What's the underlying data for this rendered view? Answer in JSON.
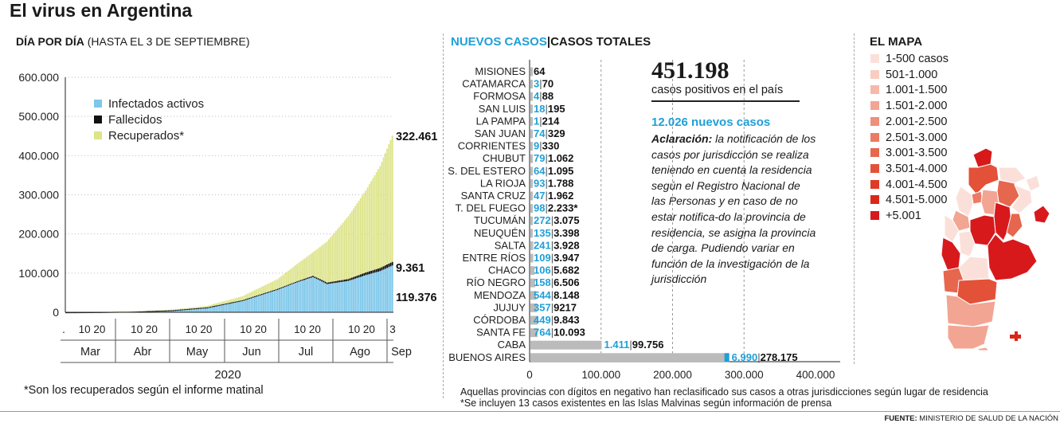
{
  "title": "El virus en Argentina",
  "left": {
    "subtitle_bold": "DÍA POR DÍA",
    "subtitle_rest": " (HASTA EL 3 DE SEPTIEMBRE)",
    "footnote": "*Son los recuperados según el informe matinal"
  },
  "middle": {
    "header_new": "NUEVOS CASOS",
    "header_sep": "|",
    "header_total": "CASOS TOTALES",
    "big_total": "451.198",
    "big_sub": "casos positivos en el país",
    "new_cases": "12.026 nuevos casos",
    "aclaracion_bold": "Aclaración:",
    "aclaracion_text": " la notificación de los casos por jurisdicción se realiza teniendo en cuenta la residencia según el Registro Nacional de las Personas y en caso de no estar notifica-do la provincia de residencia, se asigna la provincia de carga. Pudiendo variar en función de la investigación de la jurisdicción",
    "note1": "Aquellas provincias con dígitos en negativo han reclasificado sus casos a otras jurisdicciones según lugar de residencia",
    "note2": "*Se incluyen 13 casos existentes en las Islas Malvinas según información de prensa"
  },
  "source_label": "FUENTE:",
  "source_text": " MINISTERIO DE SALUD DE LA NACIÓN",
  "map": {
    "title": "EL MAPA",
    "legend": [
      {
        "label": "1-500 casos",
        "color": "#fbe0da"
      },
      {
        "label": "501-1.000",
        "color": "#f8cdc2"
      },
      {
        "label": "1.001-1.500",
        "color": "#f5b9aa"
      },
      {
        "label": "1.501-2.000",
        "color": "#f2a593"
      },
      {
        "label": "2.001-2.500",
        "color": "#ee907b"
      },
      {
        "label": "2.501-3.000",
        "color": "#eb7b64"
      },
      {
        "label": "3.001-3.500",
        "color": "#e7664e"
      },
      {
        "label": "3.501-4.000",
        "color": "#e35139"
      },
      {
        "label": "4.001-4.500",
        "color": "#df3b26"
      },
      {
        "label": "4.501-5.000",
        "color": "#db2618"
      },
      {
        "label": "+5.001",
        "color": "#d7191c"
      }
    ]
  },
  "colors": {
    "activos": "#7ec7ea",
    "fallecidos": "#111111",
    "recuperados": "#dde48a",
    "nuevos": "#1fa0d8",
    "totales_bar": "#bbbbbb"
  },
  "chart_data": [
    {
      "type": "area",
      "yticks": [
        "600.000",
        "500.000",
        "400.000",
        "300.000",
        "200.000",
        "100.000",
        "0"
      ],
      "ylim": [
        0,
        600000
      ],
      "legend": [
        {
          "name": "Infectados activos",
          "color": "#7ec7ea"
        },
        {
          "name": "Fallecidos",
          "color": "#111111"
        },
        {
          "name": "Recuperados*",
          "color": "#dde48a"
        }
      ],
      "months": [
        "Mar",
        "Apr",
        "May",
        "Jun",
        "Jul",
        "Ago",
        "Sep"
      ],
      "month_labels": [
        "Mar",
        "Abr",
        "May",
        "Jun",
        "Jul",
        "Ago",
        "Sep"
      ],
      "day_ticks": [
        "10 20",
        "10 20",
        "10 20",
        "10 20",
        "10 20",
        "10 20",
        "3"
      ],
      "year": "2020",
      "end_labels": {
        "recuperados": "322.461",
        "fallecidos": "9.361",
        "activos": "119.376"
      },
      "series_keypoints": {
        "activos": [
          [
            0,
            0
          ],
          [
            20,
            500
          ],
          [
            40,
            2000
          ],
          [
            60,
            5000
          ],
          [
            80,
            12000
          ],
          [
            100,
            30000
          ],
          [
            120,
            58000
          ],
          [
            130,
            75000
          ],
          [
            140,
            90000
          ],
          [
            148,
            72000
          ],
          [
            160,
            80000
          ],
          [
            170,
            95000
          ],
          [
            178,
            105000
          ],
          [
            185,
            119376
          ]
        ],
        "fallecidos": [
          [
            0,
            0
          ],
          [
            60,
            300
          ],
          [
            100,
            1000
          ],
          [
            130,
            2500
          ],
          [
            160,
            5000
          ],
          [
            185,
            9361
          ]
        ],
        "recuperados": [
          [
            0,
            0
          ],
          [
            40,
            300
          ],
          [
            60,
            1500
          ],
          [
            80,
            4000
          ],
          [
            100,
            10000
          ],
          [
            120,
            25000
          ],
          [
            140,
            60000
          ],
          [
            148,
            105000
          ],
          [
            160,
            160000
          ],
          [
            170,
            210000
          ],
          [
            178,
            260000
          ],
          [
            185,
            322461
          ]
        ]
      }
    },
    {
      "type": "bar",
      "xticks": [
        "0",
        "100.000",
        "200.000",
        "300.000",
        "400.000"
      ],
      "xlim": [
        0,
        400000
      ],
      "provinces": [
        {
          "name": "MISIONES",
          "new": "",
          "total": "64",
          "total_value": 64
        },
        {
          "name": "CATAMARCA",
          "new": "3",
          "total": "70",
          "total_value": 70
        },
        {
          "name": "FORMOSA",
          "new": "4",
          "total": "88",
          "total_value": 88
        },
        {
          "name": "SAN LUIS",
          "new": "18",
          "total": "195",
          "total_value": 195
        },
        {
          "name": "LA PAMPA",
          "new": "1",
          "total": "214",
          "total_value": 214
        },
        {
          "name": "SAN JUAN",
          "new": "74",
          "total": "329",
          "total_value": 329
        },
        {
          "name": "CORRIENTES",
          "new": "9",
          "total": "330",
          "total_value": 330
        },
        {
          "name": "CHUBUT",
          "new": "79",
          "total": "1.062",
          "total_value": 1062
        },
        {
          "name": "S. DEL ESTERO",
          "new": "64",
          "total": "1.095",
          "total_value": 1095
        },
        {
          "name": "LA RIOJA",
          "new": "93",
          "total": "1.788",
          "total_value": 1788
        },
        {
          "name": "SANTA CRUZ",
          "new": "47",
          "total": "1.962",
          "total_value": 1962
        },
        {
          "name": "T. DEL FUEGO",
          "new": "98",
          "total": "2.233*",
          "total_value": 2233
        },
        {
          "name": "TUCUMÁN",
          "new": "272",
          "total": "3.075",
          "total_value": 3075
        },
        {
          "name": "NEUQUÉN",
          "new": "135",
          "total": "3.398",
          "total_value": 3398
        },
        {
          "name": "SALTA",
          "new": "241",
          "total": "3.928",
          "total_value": 3928
        },
        {
          "name": "ENTRE RÍOS",
          "new": "109",
          "total": "3.947",
          "total_value": 3947
        },
        {
          "name": "CHACO",
          "new": "106",
          "total": "5.682",
          "total_value": 5682
        },
        {
          "name": "RÍO NEGRO",
          "new": "158",
          "total": "6.506",
          "total_value": 6506
        },
        {
          "name": "MENDOZA",
          "new": "544",
          "total": "8.148",
          "total_value": 8148
        },
        {
          "name": "JUJUY",
          "new": "357",
          "total": "9217",
          "total_value": 9217
        },
        {
          "name": "CÓRDOBA",
          "new": "449",
          "total": "9.843",
          "total_value": 9843
        },
        {
          "name": "SANTA FE",
          "new": "764",
          "total": "10.093",
          "total_value": 10093
        },
        {
          "name": "CABA",
          "new": "1.411",
          "total": "99.756",
          "total_value": 99756
        },
        {
          "name": "BUENOS AIRES",
          "new": "6.990",
          "total": "278.175",
          "total_value": 278175
        }
      ]
    }
  ]
}
